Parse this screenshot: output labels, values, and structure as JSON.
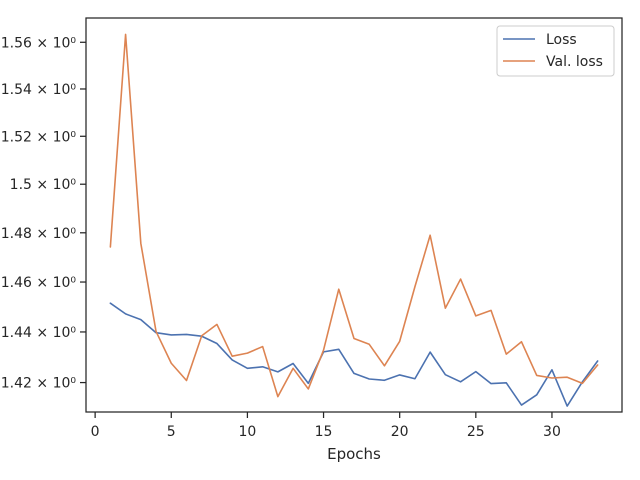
{
  "chart_data": {
    "type": "line",
    "title": "",
    "xlabel": "Epochs",
    "ylabel": "",
    "xlim": [
      -0.6,
      34.6
    ],
    "ylim": [
      1.4085,
      1.5705
    ],
    "y_scale": "log",
    "x_ticks": [
      0,
      5,
      10,
      15,
      20,
      25,
      30
    ],
    "y_ticks": [
      {
        "value": 1.42,
        "label": "1.42 × 10⁰"
      },
      {
        "value": 1.44,
        "label": "1.44 × 10⁰"
      },
      {
        "value": 1.46,
        "label": "1.46 × 10⁰"
      },
      {
        "value": 1.48,
        "label": "1.48 × 10⁰"
      },
      {
        "value": 1.5,
        "label": "1.5 × 10⁰"
      },
      {
        "value": 1.52,
        "label": "1.52 × 10⁰"
      },
      {
        "value": 1.54,
        "label": "1.54 × 10⁰"
      },
      {
        "value": 1.56,
        "label": "1.56 × 10⁰"
      }
    ],
    "grid": false,
    "legend_position": "top-right",
    "x": [
      1,
      2,
      3,
      4,
      5,
      6,
      7,
      8,
      9,
      10,
      11,
      12,
      13,
      14,
      15,
      16,
      17,
      18,
      19,
      20,
      21,
      22,
      23,
      24,
      25,
      26,
      27,
      28,
      29,
      30,
      31,
      32,
      33
    ],
    "series": [
      {
        "name": "Loss",
        "color": "#4c72b0",
        "values": [
          1.4515,
          1.4472,
          1.4449,
          1.4397,
          1.4388,
          1.439,
          1.4383,
          1.4354,
          1.4289,
          1.4256,
          1.4262,
          1.4242,
          1.4275,
          1.4197,
          1.4321,
          1.4331,
          1.4236,
          1.4214,
          1.4209,
          1.423,
          1.4215,
          1.432,
          1.4231,
          1.4203,
          1.4243,
          1.4196,
          1.4199,
          1.4112,
          1.4152,
          1.425,
          1.4108,
          1.4203,
          1.4285
        ]
      },
      {
        "name": "Val. loss",
        "color": "#dd8452",
        "values": [
          1.4742,
          1.5634,
          1.4757,
          1.4402,
          1.4276,
          1.4208,
          1.4385,
          1.443,
          1.4304,
          1.4316,
          1.4342,
          1.4145,
          1.4256,
          1.4175,
          1.4328,
          1.4571,
          1.4374,
          1.4351,
          1.4266,
          1.4363,
          1.4581,
          1.479,
          1.4495,
          1.4612,
          1.4464,
          1.4486,
          1.4312,
          1.4361,
          1.4228,
          1.4218,
          1.4221,
          1.4197,
          1.4269
        ]
      }
    ]
  }
}
